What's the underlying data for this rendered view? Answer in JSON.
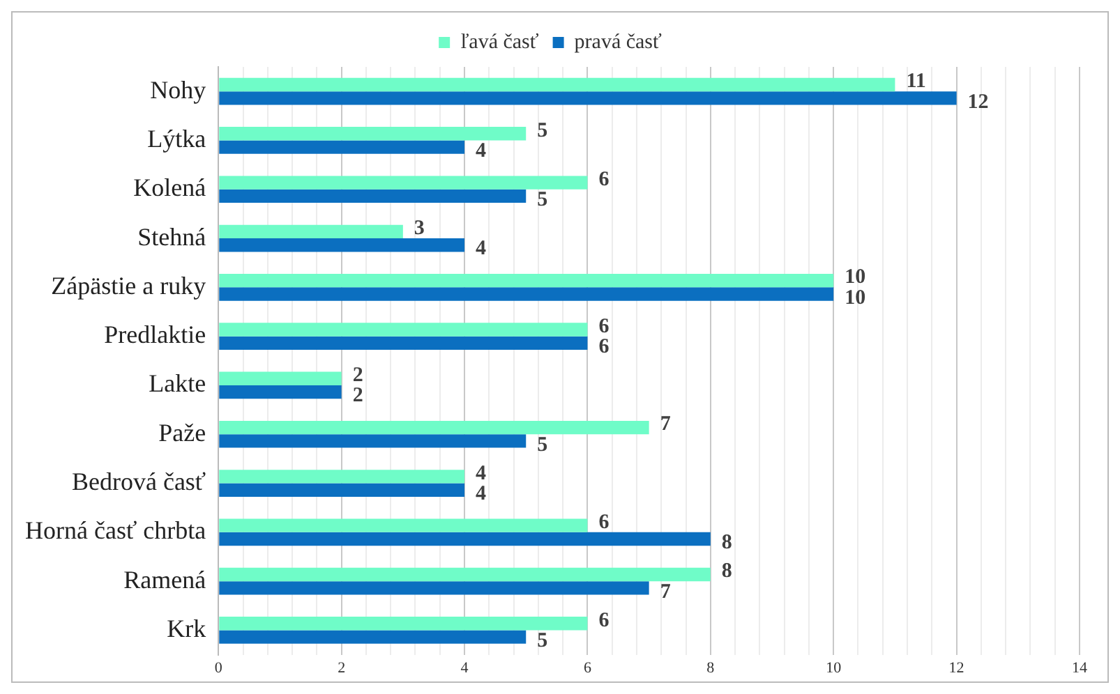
{
  "chart_data": {
    "type": "bar",
    "orientation": "horizontal",
    "categories": [
      "Nohy",
      "Lýtka",
      "Kolená",
      "Stehná",
      "Zápästie a ruky",
      "Predlaktie",
      "Lakte",
      "Paže",
      "Bedrová časť",
      "Horná časť chrbta",
      "Ramená",
      "Krk"
    ],
    "series": [
      {
        "name": "ľavá časť",
        "color": "#6ffcc8",
        "values": [
          11,
          5,
          6,
          3,
          10,
          6,
          2,
          7,
          4,
          6,
          8,
          6
        ]
      },
      {
        "name": "pravá časť",
        "color": "#0b6fc0",
        "values": [
          12,
          4,
          5,
          4,
          10,
          6,
          2,
          5,
          4,
          8,
          7,
          5
        ]
      }
    ],
    "xlim": [
      0,
      14
    ],
    "xticks": [
      0,
      {
        "value": 0.4,
        "label": null
      },
      {
        "value": 0.8,
        "label": null
      },
      {
        "value": 1.2,
        "label": null
      },
      {
        "value": 1.6,
        "label": null
      },
      2,
      {
        "value": 2.4,
        "label": null
      },
      {
        "value": 2.8,
        "label": null
      },
      {
        "value": 3.2,
        "label": null
      },
      {
        "value": 3.6,
        "label": null
      },
      4,
      {
        "value": 4.4,
        "label": null
      },
      {
        "value": 4.8,
        "label": null
      },
      {
        "value": 5.2,
        "label": null
      },
      {
        "value": 5.6,
        "label": null
      },
      6,
      {
        "value": 6.4,
        "label": null
      },
      {
        "value": 6.8,
        "label": null
      },
      {
        "value": 7.2,
        "label": null
      },
      {
        "value": 7.6,
        "label": null
      },
      8,
      {
        "value": 8.4,
        "label": null
      },
      {
        "value": 8.8,
        "label": null
      },
      {
        "value": 9.2,
        "label": null
      },
      {
        "value": 9.6,
        "label": null
      },
      10,
      {
        "value": 10.4,
        "label": null
      },
      {
        "value": 10.8,
        "label": null
      },
      {
        "value": 11.2,
        "label": null
      },
      {
        "value": 11.6,
        "label": null
      },
      12,
      {
        "value": 12.4,
        "label": null
      },
      {
        "value": 12.8,
        "label": null
      },
      {
        "value": 13.2,
        "label": null
      },
      {
        "value": 13.6,
        "label": null
      },
      14
    ],
    "grid": "x",
    "legend": "top",
    "data_labels": true
  }
}
